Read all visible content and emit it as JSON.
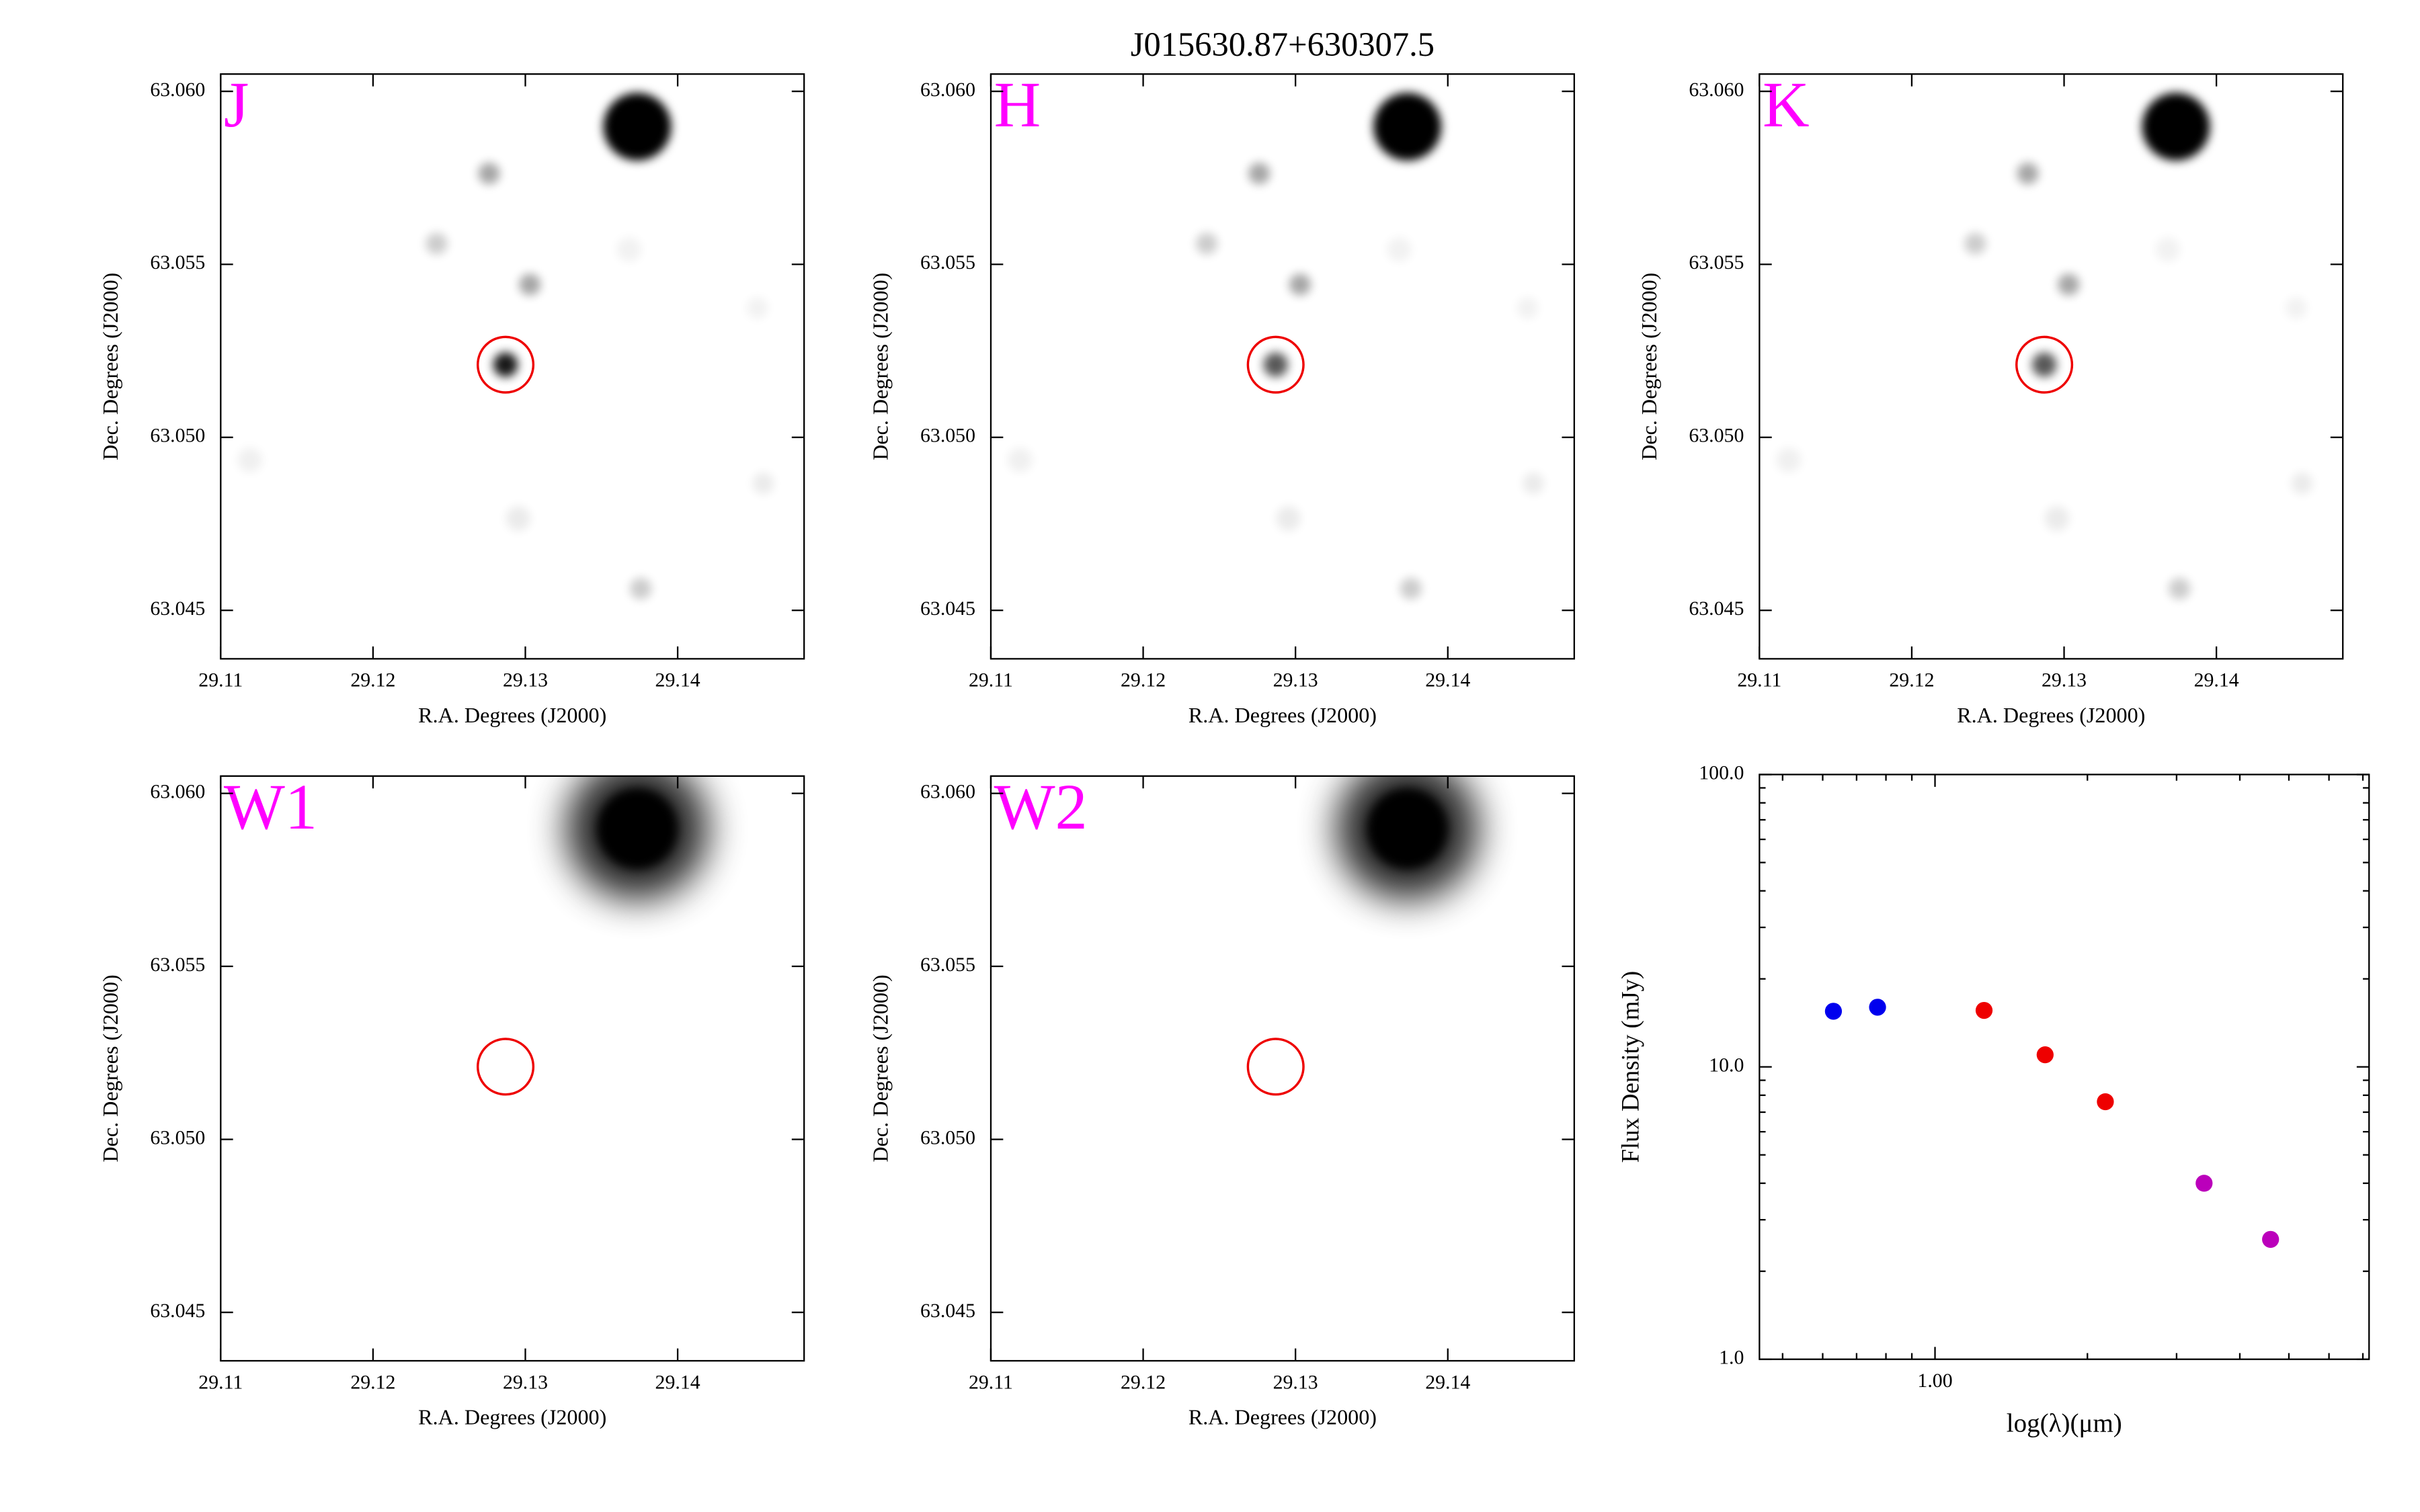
{
  "title": "J015630.87+630307.5",
  "chart_data": [
    {
      "type": "image",
      "band": "J",
      "xlabel": "R.A. Degrees (J2000)",
      "ylabel": "Dec. Degrees (J2000)",
      "xlim": [
        29.11,
        29.1483
      ],
      "ylim": [
        63.0436,
        63.0605
      ],
      "xticks": [
        29.11,
        29.12,
        29.13,
        29.14
      ],
      "yticks": [
        63.045,
        {
          "value": 63.05,
          "label": "63.050"
        },
        63.055,
        {
          "value": 63.06,
          "label": "63.060"
        }
      ],
      "marker": {
        "x": 29.1287,
        "y": 63.0521
      }
    },
    {
      "type": "image",
      "band": "H",
      "xlabel": "R.A. Degrees (J2000)",
      "ylabel": "Dec. Degrees (J2000)",
      "xlim": [
        29.11,
        29.1483
      ],
      "ylim": [
        63.0436,
        63.0605
      ],
      "xticks": [
        29.11,
        29.12,
        29.13,
        29.14
      ],
      "yticks": [
        63.045,
        {
          "value": 63.05,
          "label": "63.050"
        },
        63.055,
        {
          "value": 63.06,
          "label": "63.060"
        }
      ],
      "marker": {
        "x": 29.1287,
        "y": 63.0521
      }
    },
    {
      "type": "image",
      "band": "K",
      "xlabel": "R.A. Degrees (J2000)",
      "ylabel": "Dec. Degrees (J2000)",
      "xlim": [
        29.11,
        29.1483
      ],
      "ylim": [
        63.0436,
        63.0605
      ],
      "xticks": [
        29.11,
        29.12,
        29.13,
        29.14
      ],
      "yticks": [
        63.045,
        {
          "value": 63.05,
          "label": "63.050"
        },
        63.055,
        {
          "value": 63.06,
          "label": "63.060"
        }
      ],
      "marker": {
        "x": 29.1287,
        "y": 63.0521
      }
    },
    {
      "type": "image",
      "band": "W1",
      "xlabel": "R.A. Degrees (J2000)",
      "ylabel": "Dec. Degrees (J2000)",
      "xlim": [
        29.11,
        29.1483
      ],
      "ylim": [
        63.0436,
        63.0605
      ],
      "xticks": [
        29.11,
        29.12,
        29.13,
        29.14
      ],
      "yticks": [
        63.045,
        {
          "value": 63.05,
          "label": "63.050"
        },
        63.055,
        {
          "value": 63.06,
          "label": "63.060"
        }
      ],
      "marker": {
        "x": 29.1287,
        "y": 63.0521
      }
    },
    {
      "type": "image",
      "band": "W2",
      "xlabel": "R.A. Degrees (J2000)",
      "ylabel": "Dec. Degrees (J2000)",
      "xlim": [
        29.11,
        29.1483
      ],
      "ylim": [
        63.0436,
        63.0605
      ],
      "xticks": [
        29.11,
        29.12,
        29.13,
        29.14
      ],
      "yticks": [
        63.045,
        {
          "value": 63.05,
          "label": "63.050"
        },
        63.055,
        {
          "value": 63.06,
          "label": "63.060"
        }
      ],
      "marker": {
        "x": 29.1287,
        "y": 63.0521
      }
    },
    {
      "type": "scatter",
      "xlabel": "log(λ)(μm)",
      "ylabel": "Flux Density (mJy)",
      "xlog": true,
      "ylog": true,
      "xlim": [
        0.45,
        7.2
      ],
      "ylim": [
        1,
        100
      ],
      "xticks": [
        {
          "value": 1,
          "label": "1.00"
        }
      ],
      "yticks": [
        {
          "value": 1,
          "label": "1.0"
        },
        {
          "value": 10,
          "label": "10.0"
        },
        {
          "value": 100,
          "label": "100.0"
        }
      ],
      "series": [
        {
          "color": "#0000ee",
          "x": [
            0.63,
            0.77
          ],
          "values": [
            15.5,
            16.0
          ]
        },
        {
          "color": "#ee0000",
          "x": [
            1.25,
            1.65,
            2.17
          ],
          "values": [
            15.6,
            11.0,
            7.6
          ]
        },
        {
          "color": "#bb00bb",
          "x": [
            3.4,
            4.6
          ],
          "values": [
            4.0,
            2.57
          ]
        }
      ]
    }
  ]
}
